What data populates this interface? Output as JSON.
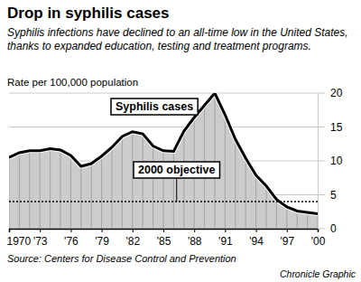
{
  "chart_data": {
    "type": "area",
    "title": "Drop in syphilis cases",
    "subtitle": "Syphilis infections have declined to an all-time low in the United States, thanks to expanded education, testing and treatment programs.",
    "y_label": "Rate per 100,000 population",
    "source": "Source: Centers for Disease Control and Prevention",
    "credit": "Chronicle Graphic",
    "x": [
      1970,
      1971,
      1972,
      1973,
      1974,
      1975,
      1976,
      1977,
      1978,
      1979,
      1980,
      1981,
      1982,
      1983,
      1984,
      1985,
      1986,
      1987,
      1988,
      1989,
      1990,
      1991,
      1992,
      1993,
      1994,
      1995,
      1996,
      1997,
      1998,
      1999,
      2000
    ],
    "series": [
      {
        "name": "Syphilis cases",
        "color": "#cccccc",
        "values": [
          10.5,
          11.2,
          11.5,
          11.5,
          11.8,
          11.6,
          10.8,
          9.2,
          9.6,
          10.7,
          12.0,
          13.6,
          14.3,
          14.0,
          12.2,
          11.5,
          11.4,
          14.4,
          16.4,
          18.2,
          20.0,
          16.8,
          13.2,
          10.4,
          7.9,
          6.3,
          4.3,
          3.2,
          2.6,
          2.4,
          2.2
        ]
      }
    ],
    "reference_lines": [
      {
        "label": "2000 objective",
        "value": 4,
        "line_style": "dotted"
      }
    ],
    "xlim": [
      1970,
      2000
    ],
    "xticks": [
      1970,
      {
        "value": 1973,
        "label": "'73"
      },
      {
        "value": 1976,
        "label": "'76"
      },
      {
        "value": 1979,
        "label": "'79"
      },
      {
        "value": 1982,
        "label": "'82"
      },
      {
        "value": 1985,
        "label": "'85"
      },
      {
        "value": 1988,
        "label": "'88"
      },
      {
        "value": 1991,
        "label": "'91"
      },
      {
        "value": 1994,
        "label": "'94"
      },
      {
        "value": 1997,
        "label": "'97"
      },
      {
        "value": 2000,
        "label": "'00"
      }
    ],
    "ylim": [
      0,
      20
    ],
    "yticks": [
      0,
      5,
      10,
      15,
      20
    ],
    "grid": true
  }
}
